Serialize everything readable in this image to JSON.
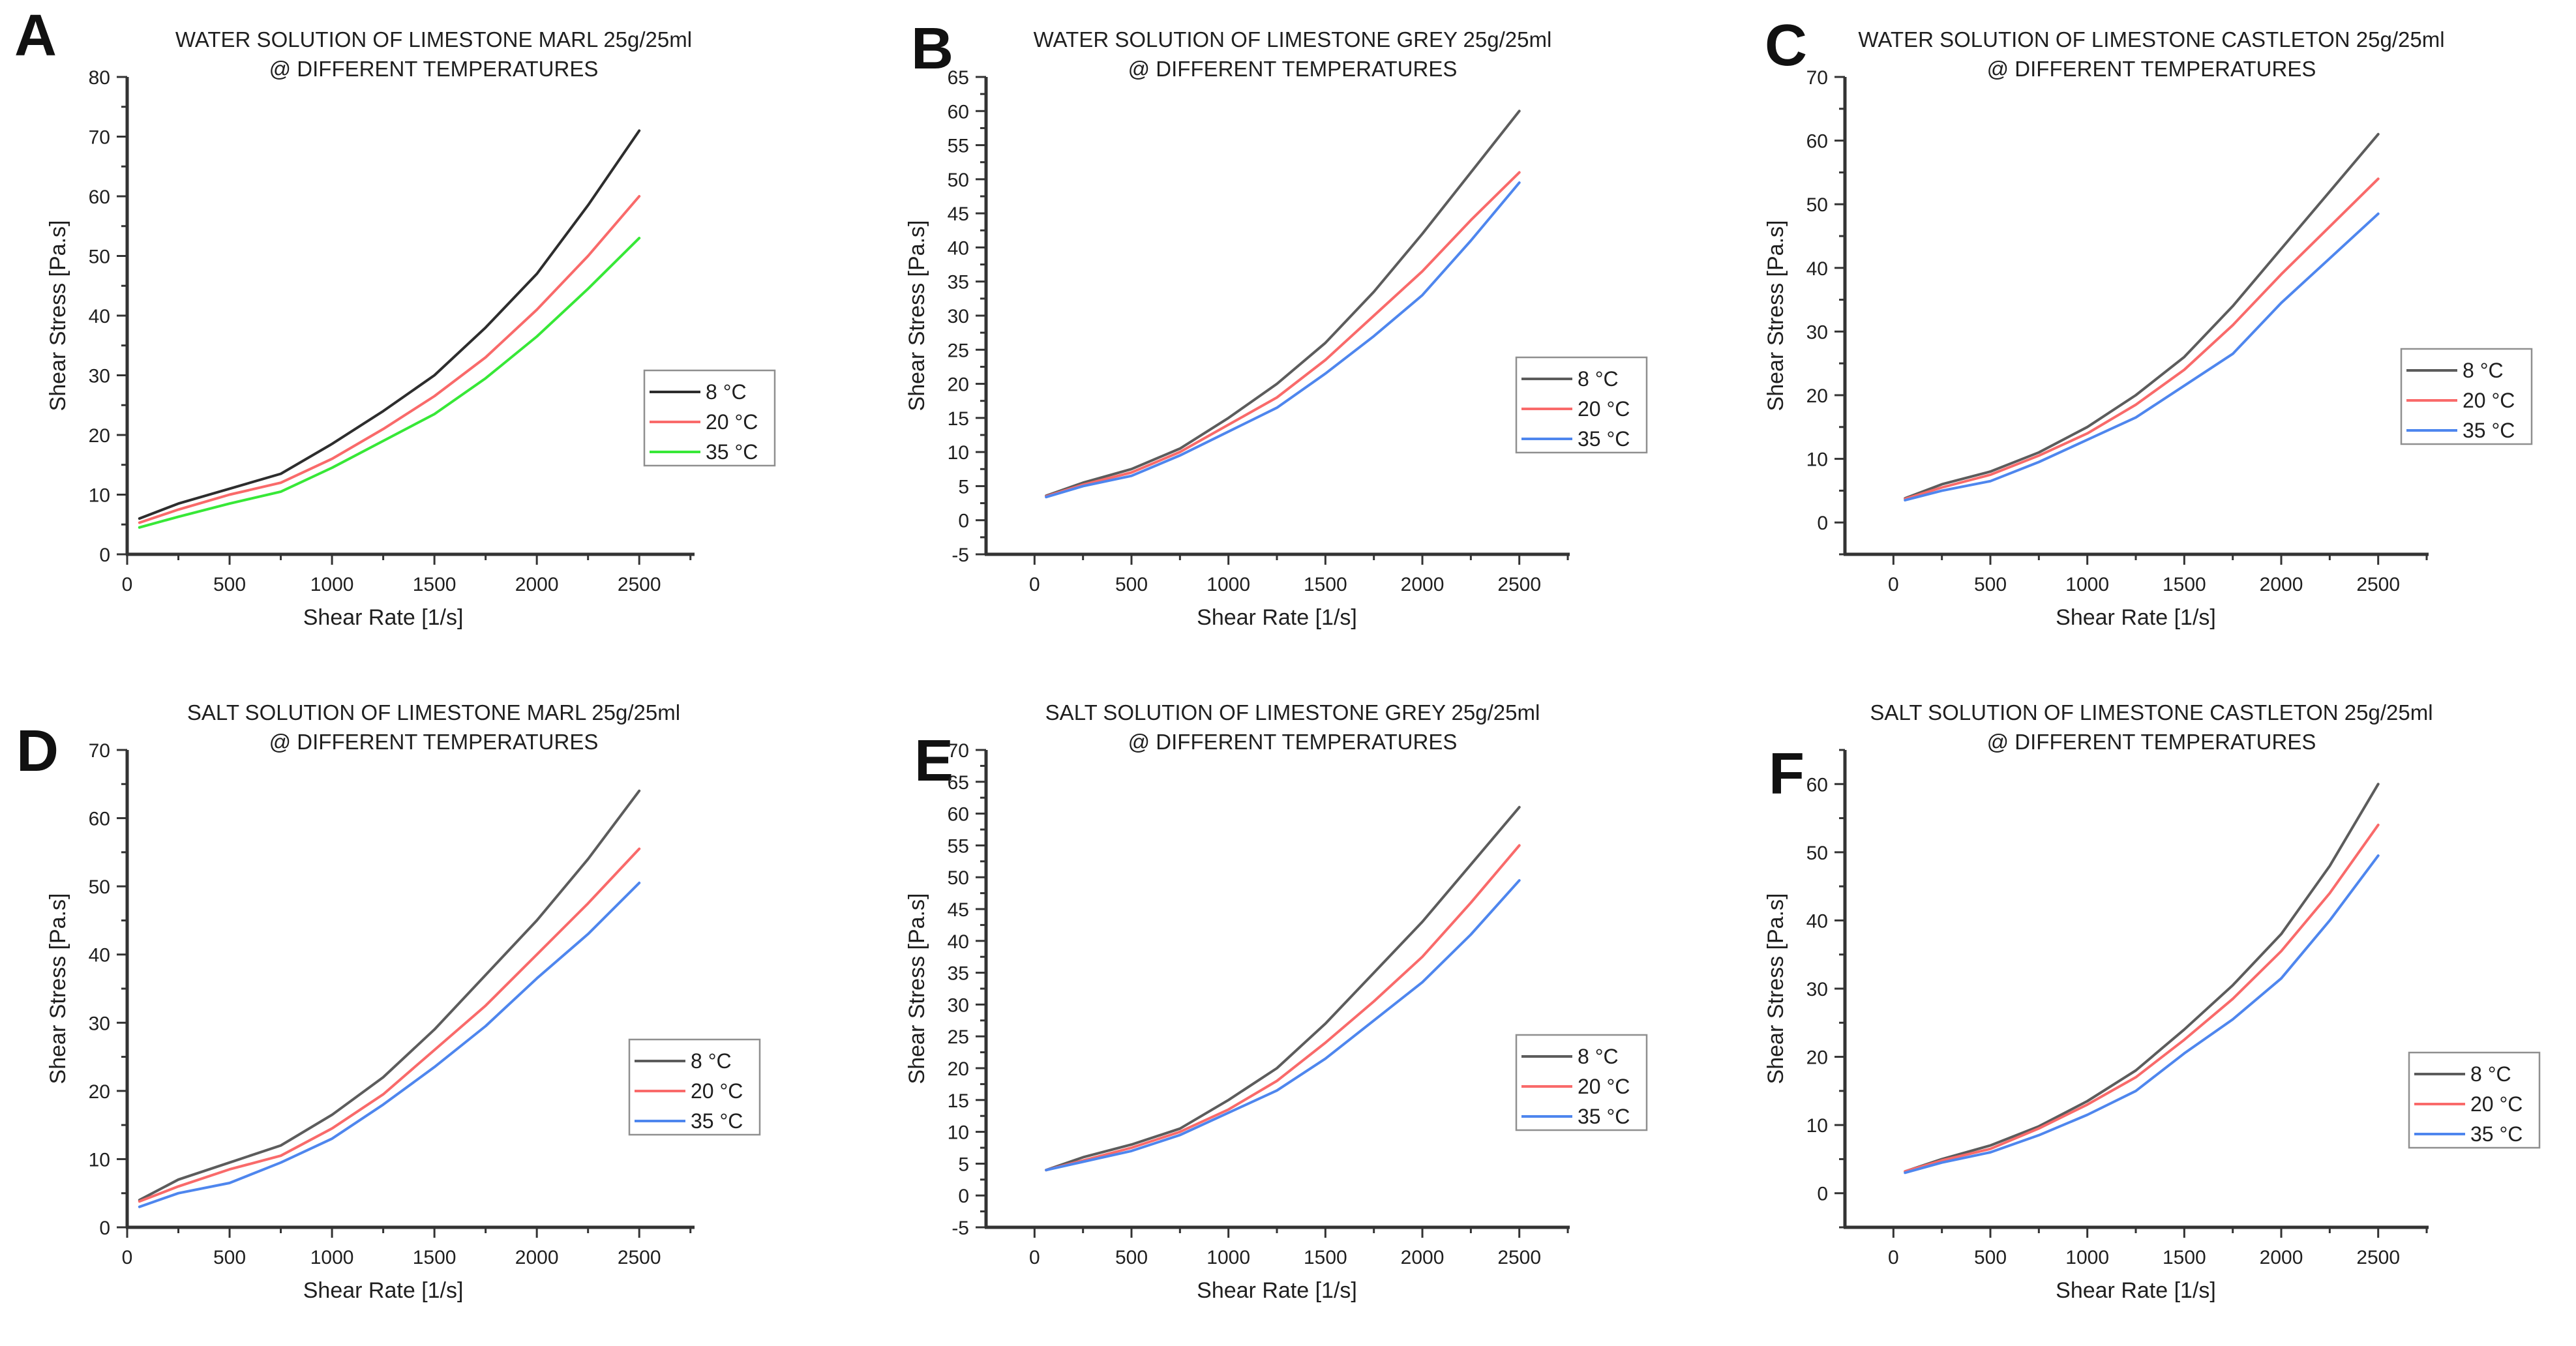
{
  "figure": {
    "background": "#ffffff",
    "axis_color": "#333333",
    "text_color": "#1f1f1f",
    "legend_border_color": "#8f8f8f",
    "legend_background": "#ffffff"
  },
  "chart_data": [
    {
      "panel_letter": "A",
      "type": "line",
      "title": "WATER SOLUTION OF LIMESTONE MARL 25g/25ml",
      "subtitle": "@ DIFFERENT TEMPERATURES",
      "xlabel": "Shear Rate [1/s]",
      "ylabel": "Shear Stress [Pa.s]",
      "xlim": [
        0,
        2770
      ],
      "ylim": [
        0,
        80
      ],
      "x_ticks": [
        0,
        500,
        1000,
        1500,
        2000,
        2500
      ],
      "y_ticks": [
        0,
        10,
        20,
        30,
        40,
        50,
        60,
        70,
        80
      ],
      "x_minor_step": 250,
      "y_minor_step": 5,
      "x": [
        60,
        250,
        500,
        750,
        1000,
        1250,
        1500,
        1750,
        2000,
        2250,
        2500
      ],
      "series": [
        {
          "name": "8 °C",
          "color": "#2d2d2d",
          "values": [
            6,
            8.5,
            11,
            13.5,
            18.5,
            24,
            30,
            38,
            47,
            58.5,
            71
          ]
        },
        {
          "name": "20 °C",
          "color": "#f96a6a",
          "values": [
            5.3,
            7.5,
            10,
            12,
            16,
            21,
            26.5,
            33,
            41,
            50,
            60
          ]
        },
        {
          "name": "35 °C",
          "color": "#37e837",
          "values": [
            4.5,
            6.3,
            8.5,
            10.5,
            14.5,
            19,
            23.5,
            29.5,
            36.5,
            44.5,
            53
          ]
        }
      ],
      "legend_position": "right-middle",
      "legend_xy": [
        988,
        568
      ],
      "letter_xy": [
        22,
        85
      ]
    },
    {
      "panel_letter": "B",
      "type": "line",
      "title": "WATER SOLUTION OF LIMESTONE GREY 25g/25ml",
      "subtitle": "@ DIFFERENT TEMPERATURES",
      "xlabel": "Shear Rate [1/s]",
      "ylabel": "Shear Stress [Pa.s]",
      "xlim": [
        -250,
        2760
      ],
      "ylim": [
        -5,
        65
      ],
      "x_ticks": [
        0,
        500,
        1000,
        1500,
        2000,
        2500
      ],
      "y_ticks": [
        -5,
        0,
        5,
        10,
        15,
        20,
        25,
        30,
        35,
        40,
        45,
        50,
        55,
        60,
        65
      ],
      "x_minor_step": 250,
      "y_minor_step": 2.5,
      "x": [
        60,
        250,
        500,
        750,
        1000,
        1250,
        1500,
        1750,
        2000,
        2250,
        2500
      ],
      "series": [
        {
          "name": "8 °C",
          "color": "#5c5c5c",
          "values": [
            3.6,
            5.5,
            7.5,
            10.5,
            15,
            20,
            26,
            33.5,
            42,
            51,
            60
          ]
        },
        {
          "name": "20 °C",
          "color": "#f96a6a",
          "values": [
            3.5,
            5.2,
            7,
            10,
            14,
            18,
            23.5,
            30,
            36.5,
            44,
            51
          ]
        },
        {
          "name": "35 °C",
          "color": "#4e86ee",
          "values": [
            3.4,
            5,
            6.5,
            9.5,
            13,
            16.5,
            21.5,
            27,
            33,
            41,
            49.5
          ]
        }
      ],
      "legend_position": "right-middle",
      "legend_xy": [
        1008,
        548
      ],
      "letter_xy": [
        80,
        105
      ]
    },
    {
      "panel_letter": "C",
      "type": "line",
      "title": "WATER SOLUTION OF LIMESTONE CASTLETON 25g/25ml",
      "subtitle": "@ DIFFERENT TEMPERATURES",
      "xlabel": "Shear Rate [1/s]",
      "ylabel": "Shear Stress [Pa.s]",
      "xlim": [
        -250,
        2760
      ],
      "ylim": [
        -5,
        70
      ],
      "x_ticks": [
        0,
        500,
        1000,
        1500,
        2000,
        2500
      ],
      "y_ticks": [
        0,
        10,
        20,
        30,
        40,
        50,
        60,
        70
      ],
      "x_minor_step": 250,
      "y_minor_step": 5,
      "x": [
        60,
        250,
        500,
        750,
        1000,
        1250,
        1500,
        1750,
        2000,
        2250,
        2500
      ],
      "series": [
        {
          "name": "8 °C",
          "color": "#5c5c5c",
          "values": [
            3.8,
            6,
            8,
            11,
            15,
            20,
            26,
            34,
            43,
            52,
            61
          ]
        },
        {
          "name": "20 °C",
          "color": "#f96a6a",
          "values": [
            3.7,
            5.5,
            7.5,
            10.5,
            14,
            18.5,
            24,
            31,
            39,
            46.5,
            54
          ]
        },
        {
          "name": "35 °C",
          "color": "#4e86ee",
          "values": [
            3.5,
            5,
            6.5,
            9.5,
            13,
            16.5,
            21.5,
            26.5,
            34.5,
            41.5,
            48.5
          ]
        }
      ],
      "legend_position": "right-middle",
      "legend_xy": [
        1048,
        535
      ],
      "letter_xy": [
        72,
        100
      ]
    },
    {
      "panel_letter": "D",
      "type": "line",
      "title": "SALT SOLUTION OF LIMESTONE MARL 25g/25ml",
      "subtitle": "@ DIFFERENT TEMPERATURES",
      "xlabel": "Shear Rate [1/s]",
      "ylabel": "Shear Stress [Pa.s]",
      "xlim": [
        0,
        2770
      ],
      "ylim": [
        0,
        70
      ],
      "x_ticks": [
        0,
        500,
        1000,
        1500,
        2000,
        2500
      ],
      "y_ticks": [
        0,
        10,
        20,
        30,
        40,
        50,
        60,
        70
      ],
      "x_minor_step": 250,
      "y_minor_step": 5,
      "x": [
        60,
        250,
        500,
        750,
        1000,
        1250,
        1500,
        1750,
        2000,
        2250,
        2500
      ],
      "series": [
        {
          "name": "8 °C",
          "color": "#5c5c5c",
          "values": [
            4,
            7,
            9.5,
            12,
            16.5,
            22,
            29,
            37,
            45,
            54,
            64
          ]
        },
        {
          "name": "20 °C",
          "color": "#f96a6a",
          "values": [
            3.8,
            6,
            8.5,
            10.5,
            14.5,
            19.5,
            26,
            32.5,
            40,
            47.5,
            55.5
          ]
        },
        {
          "name": "35 °C",
          "color": "#4e86ee",
          "values": [
            3,
            5,
            6.5,
            9.5,
            13,
            18,
            23.5,
            29.5,
            36.5,
            43,
            50.5
          ]
        }
      ],
      "legend_position": "right-middle",
      "legend_xy": [
        965,
        562
      ],
      "letter_xy": [
        25,
        150
      ]
    },
    {
      "panel_letter": "E",
      "type": "line",
      "title": "SALT SOLUTION OF LIMESTONE GREY 25g/25ml",
      "subtitle": "@ DIFFERENT TEMPERATURES",
      "xlabel": "Shear Rate [1/s]",
      "ylabel": "Shear Stress [Pa.s]",
      "xlim": [
        -250,
        2760
      ],
      "ylim": [
        -5,
        70
      ],
      "x_ticks": [
        0,
        500,
        1000,
        1500,
        2000,
        2500
      ],
      "y_ticks": [
        -5,
        0,
        5,
        10,
        15,
        20,
        25,
        30,
        35,
        40,
        45,
        50,
        55,
        60,
        65,
        70
      ],
      "x_minor_step": 250,
      "y_minor_step": 2.5,
      "x": [
        60,
        250,
        500,
        750,
        1000,
        1250,
        1500,
        1750,
        2000,
        2250,
        2500
      ],
      "series": [
        {
          "name": "8 °C",
          "color": "#5c5c5c",
          "values": [
            4,
            6,
            8,
            10.5,
            15,
            20,
            27,
            35,
            43,
            52,
            61
          ]
        },
        {
          "name": "20 °C",
          "color": "#f96a6a",
          "values": [
            4,
            5.5,
            7.5,
            10,
            13.5,
            18,
            24,
            30.5,
            37.5,
            46,
            55
          ]
        },
        {
          "name": "35 °C",
          "color": "#4e86ee",
          "values": [
            4,
            5.3,
            7,
            9.5,
            13,
            16.5,
            21.5,
            27.5,
            33.5,
            41,
            49.5
          ]
        }
      ],
      "legend_position": "right-middle",
      "legend_xy": [
        1008,
        555
      ],
      "letter_xy": [
        85,
        165
      ]
    },
    {
      "panel_letter": "F",
      "type": "line",
      "title": "SALT SOLUTION OF LIMESTONE CASTLETON 25g/25ml",
      "subtitle": "@ DIFFERENT TEMPERATURES",
      "xlabel": "Shear Rate [1/s]",
      "ylabel": "Shear Stress [Pa.s]",
      "xlim": [
        -250,
        2760
      ],
      "ylim": [
        -5,
        65
      ],
      "x_ticks": [
        0,
        500,
        1000,
        1500,
        2000,
        2500
      ],
      "y_ticks": [
        0,
        10,
        20,
        30,
        40,
        50,
        60
      ],
      "x_minor_step": 250,
      "y_minor_step": 5,
      "x": [
        60,
        250,
        500,
        750,
        1000,
        1250,
        1500,
        1750,
        2000,
        2250,
        2500
      ],
      "series": [
        {
          "name": "8 °C",
          "color": "#5c5c5c",
          "values": [
            3.2,
            5,
            7,
            9.8,
            13.5,
            18,
            24,
            30.5,
            38,
            48,
            60
          ]
        },
        {
          "name": "20 °C",
          "color": "#f96a6a",
          "values": [
            3.2,
            4.8,
            6.5,
            9.5,
            13,
            17,
            22.5,
            28.5,
            35.5,
            44,
            54
          ]
        },
        {
          "name": "35 °C",
          "color": "#4e86ee",
          "values": [
            3,
            4.5,
            6,
            8.5,
            11.5,
            15,
            20.5,
            25.5,
            31.5,
            40,
            49.5
          ]
        }
      ],
      "legend_position": "right-middle",
      "legend_xy": [
        1060,
        582
      ],
      "letter_xy": [
        78,
        185
      ]
    }
  ]
}
